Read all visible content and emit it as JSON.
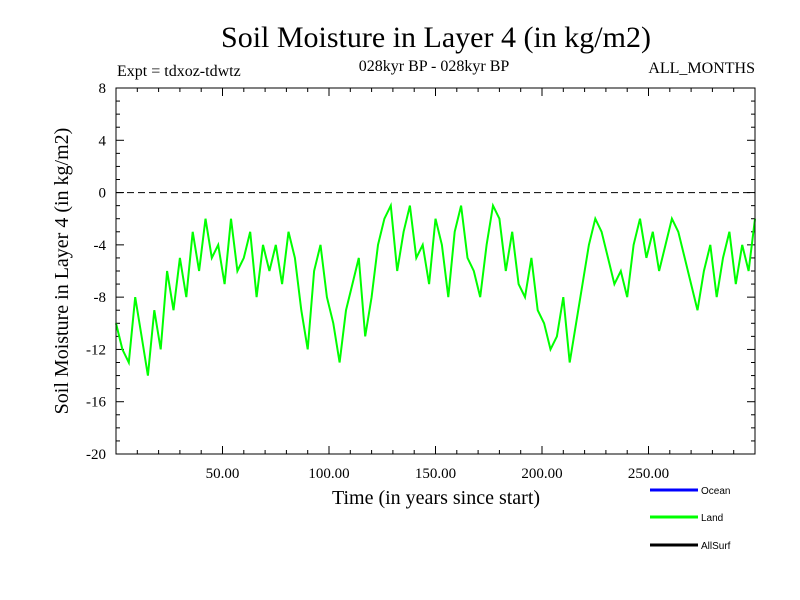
{
  "chart_data": {
    "type": "line",
    "title": "Soil Moisture in Layer 4 (in kg/m2)",
    "subtitle": "028kyr BP - 028kyr BP",
    "expt_label": "Expt = tdxoz-tdwtz",
    "period_label": "ALL_MONTHS",
    "xlabel": "Time (in years since start)",
    "ylabel": "Soil Moisture in Layer 4 (in kg/m2)",
    "xlim": [
      0,
      300
    ],
    "ylim": [
      -20,
      8
    ],
    "x_ticks": [
      50,
      100,
      150,
      200,
      250
    ],
    "x_tick_labels": [
      "50.00",
      "100.00",
      "150.00",
      "200.00",
      "250.00"
    ],
    "y_ticks": [
      -20,
      -16,
      -12,
      -8,
      -4,
      0,
      4,
      8
    ],
    "y_tick_labels": [
      "-20",
      "-16",
      "-12",
      "-8",
      "-4",
      "0",
      "4",
      "8"
    ],
    "reference_line": 0,
    "legend_position": "bottom-right",
    "series": [
      {
        "name": "Ocean",
        "color": "#0000ff",
        "x": [],
        "y": []
      },
      {
        "name": "Land",
        "color": "#00ff00",
        "x": [
          0,
          3,
          6,
          9,
          12,
          15,
          18,
          21,
          24,
          27,
          30,
          33,
          36,
          39,
          42,
          45,
          48,
          51,
          54,
          57,
          60,
          63,
          66,
          69,
          72,
          75,
          78,
          81,
          84,
          87,
          90,
          93,
          96,
          99,
          102,
          105,
          108,
          111,
          114,
          117,
          120,
          123,
          126,
          129,
          132,
          135,
          138,
          141,
          144,
          147,
          150,
          153,
          156,
          159,
          162,
          165,
          168,
          171,
          174,
          177,
          180,
          183,
          186,
          189,
          192,
          195,
          198,
          201,
          204,
          207,
          210,
          213,
          216,
          219,
          222,
          225,
          228,
          231,
          234,
          237,
          240,
          243,
          246,
          249,
          252,
          255,
          258,
          261,
          264,
          267,
          270,
          273,
          276,
          279,
          282,
          285,
          288,
          291,
          294,
          297,
          300
        ],
        "y": [
          -10,
          -12,
          -13,
          -8,
          -11,
          -14,
          -9,
          -12,
          -6,
          -9,
          -5,
          -8,
          -3,
          -6,
          -2,
          -5,
          -4,
          -7,
          -2,
          -6,
          -5,
          -3,
          -8,
          -4,
          -6,
          -4,
          -7,
          -3,
          -5,
          -9,
          -12,
          -6,
          -4,
          -8,
          -10,
          -13,
          -9,
          -7,
          -5,
          -11,
          -8,
          -4,
          -2,
          -1,
          -6,
          -3,
          -1,
          -5,
          -4,
          -7,
          -2,
          -4,
          -8,
          -3,
          -1,
          -5,
          -6,
          -8,
          -4,
          -1,
          -2,
          -6,
          -3,
          -7,
          -8,
          -5,
          -9,
          -10,
          -12,
          -11,
          -8,
          -13,
          -10,
          -7,
          -4,
          -2,
          -3,
          -5,
          -7,
          -6,
          -8,
          -4,
          -2,
          -5,
          -3,
          -6,
          -4,
          -2,
          -3,
          -5,
          -7,
          -9,
          -6,
          -4,
          -8,
          -5,
          -3,
          -7,
          -4,
          -6,
          -2
        ]
      },
      {
        "name": "AllSurf",
        "color": "#000000",
        "x": [],
        "y": []
      }
    ]
  }
}
